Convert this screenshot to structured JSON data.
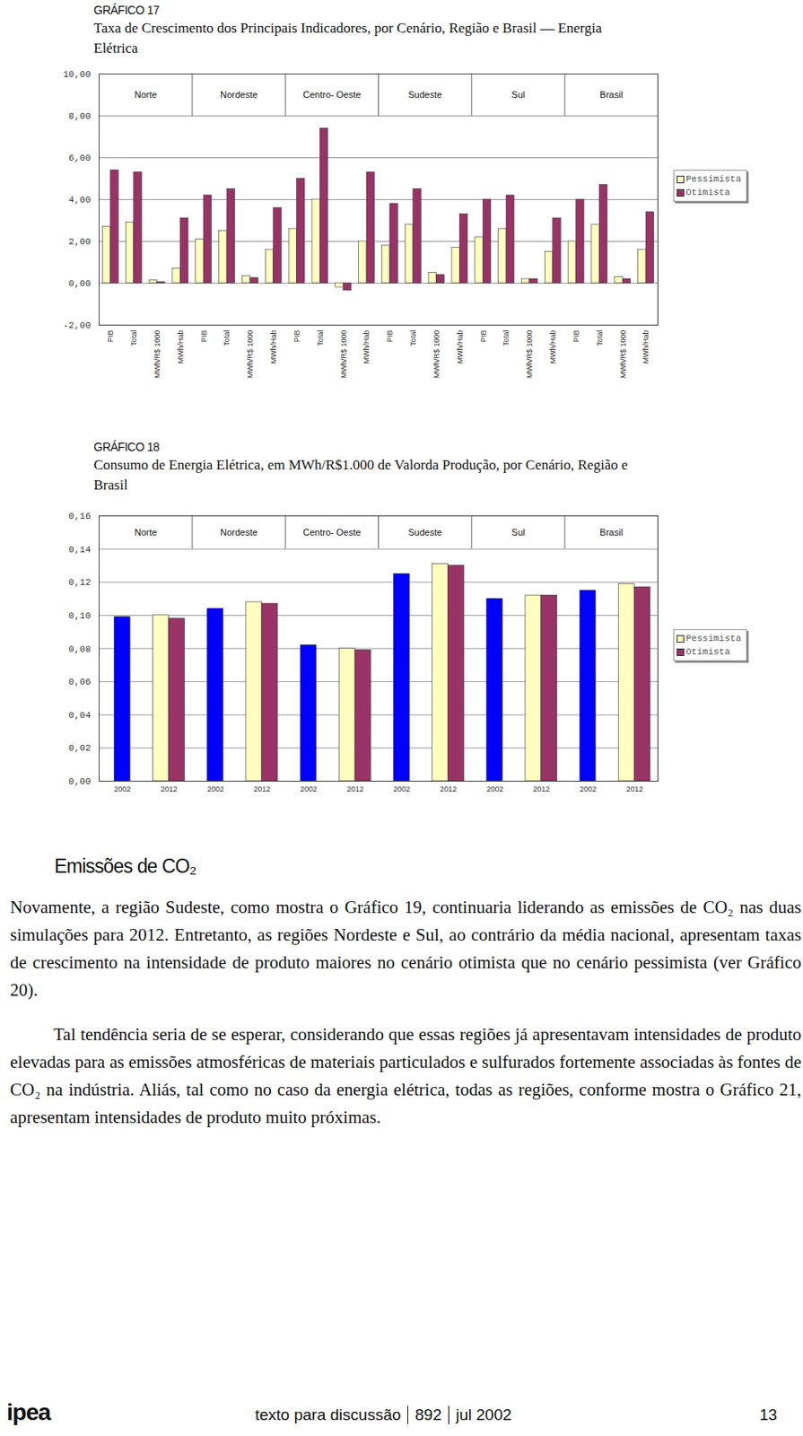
{
  "chart_data": [
    {
      "type": "bar",
      "figure_label": "GRÁFICO 17",
      "title": "Taxa de Crescimento dos Principais Indicadores, por Cenário, Região e Brasil — Energia Elétrica",
      "groups": [
        "Norte",
        "Nordeste",
        "Centro- Oeste",
        "Sudeste",
        "Sul",
        "Brasil"
      ],
      "categories": [
        "PIB",
        "Total",
        "MWh/R$ 1000",
        "MWh/Hab",
        "PIB",
        "Total",
        "MWh/R$ 1000",
        "MWh/Hab",
        "PIB",
        "Total",
        "MWh/R$ 1000",
        "MWh/Hab",
        "PIB",
        "Total",
        "MWh/R$ 1000",
        "MWh/Hab",
        "PIB",
        "Total",
        "MWh/R$ 1000",
        "MWh/Hab",
        "PIB",
        "Total",
        "MWh/R$ 1000",
        "MWh/Hab"
      ],
      "series": [
        {
          "name": "Pessimista",
          "color": "#ffffc0",
          "values": [
            2.7,
            2.9,
            0.15,
            0.7,
            2.1,
            2.5,
            0.35,
            1.6,
            2.6,
            4.0,
            -0.2,
            2.0,
            1.8,
            2.8,
            0.5,
            1.7,
            2.2,
            2.6,
            0.2,
            1.5,
            2.0,
            2.8,
            0.3,
            1.6
          ]
        },
        {
          "name": "Otimista",
          "color": "#993366",
          "values": [
            5.4,
            5.3,
            0.05,
            3.1,
            4.2,
            4.5,
            0.25,
            3.6,
            5.0,
            7.4,
            -0.35,
            5.3,
            3.8,
            4.5,
            0.4,
            3.3,
            4.0,
            4.2,
            0.2,
            3.1,
            4.0,
            4.7,
            0.2,
            3.4
          ]
        }
      ],
      "ylim": [
        -2,
        10
      ],
      "yticks": [
        {
          "value": -2,
          "label": "-2,00"
        },
        {
          "value": 0,
          "label": "0,00"
        },
        {
          "value": 2,
          "label": "2,00"
        },
        {
          "value": 4,
          "label": "4,00"
        },
        {
          "value": 6,
          "label": "6,00"
        },
        {
          "value": 8,
          "label": "8,00"
        },
        {
          "value": 10,
          "label": "10,00"
        }
      ],
      "grid": true,
      "legend": "right"
    },
    {
      "type": "bar",
      "figure_label": "GRÁFICO 18",
      "title": "Consumo de Energia Elétrica, em MWh/R$1.000 de Valorda Produção, por Cenário, Região e Brasil",
      "groups": [
        "Norte",
        "Nordeste",
        "Centro- Oeste",
        "Sudeste",
        "Sul",
        "Brasil"
      ],
      "categories": [
        "2002",
        "2012",
        "2002",
        "2012",
        "2002",
        "2012",
        "2002",
        "2012",
        "2002",
        "2012",
        "2002",
        "2012"
      ],
      "series": [
        {
          "name": null,
          "color": "#0000ff",
          "values": [
            0.099,
            null,
            0.104,
            null,
            0.082,
            null,
            0.125,
            null,
            0.11,
            null,
            0.115,
            null
          ]
        },
        {
          "name": "Pessimista",
          "color": "#ffffc0",
          "values": [
            null,
            0.1,
            null,
            0.108,
            null,
            0.08,
            null,
            0.131,
            null,
            0.112,
            null,
            0.119
          ]
        },
        {
          "name": "Otimista",
          "color": "#993366",
          "values": [
            null,
            0.098,
            null,
            0.107,
            null,
            0.079,
            null,
            0.13,
            null,
            0.112,
            null,
            0.117
          ]
        }
      ],
      "ylim": [
        0,
        0.16
      ],
      "yticks": [
        {
          "value": 0,
          "label": "0,00"
        },
        {
          "value": 0.02,
          "label": "0,02"
        },
        {
          "value": 0.04,
          "label": "0,04"
        },
        {
          "value": 0.06,
          "label": "0,06"
        },
        {
          "value": 0.08,
          "label": "0,08"
        },
        {
          "value": 0.1,
          "label": "0,10"
        },
        {
          "value": 0.12,
          "label": "0,12"
        },
        {
          "value": 0.14,
          "label": "0,14"
        },
        {
          "value": 0.16,
          "label": "0,16"
        }
      ],
      "grid": true,
      "legend": "right"
    }
  ],
  "document": {
    "heading": "Emissões de CO₂",
    "paragraphs": [
      "Novamente, a região Sudeste, como mostra o Gráfico 19, continuaria liderando as emissões de CO₂ nas duas simulações para 2012. Entretanto, as regiões Nordeste e Sul, ao contrário da média nacional, apresentam taxas de crescimento na intensidade de produto maiores no cenário otimista que no cenário pessimista (ver Gráfico 20).",
      "Tal tendência seria de se esperar, considerando que essas regiões já apresentavam intensidades de produto elevadas para as emissões atmosféricas de materiais particulados e sulfurados fortemente associadas às fontes de CO₂ na indústria. Aliás, tal como no caso da energia elétrica, todas as regiões, conforme mostra o Gráfico 21, apresentam intensidades de produto muito próximas."
    ],
    "footer": {
      "logo": "ipea",
      "series": "texto para discussão",
      "number": "892",
      "date": "jul 2002",
      "page": "13"
    }
  }
}
